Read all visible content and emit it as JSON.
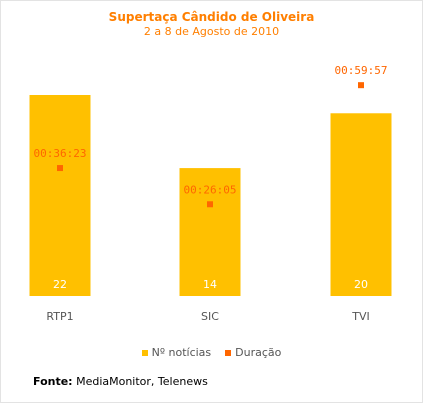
{
  "chart_data": {
    "type": "bar",
    "title": "Supertaça Cândido de Oliveira",
    "subtitle": "2 a 8 de Agosto de 2010",
    "categories": [
      "RTP1",
      "SIC",
      "TVI"
    ],
    "series": [
      {
        "name": "Nº notícias",
        "type": "bar",
        "values": [
          22,
          14,
          20
        ],
        "color": "#ffc000"
      },
      {
        "name": "Duração",
        "type": "point",
        "values": [
          "00:36:23",
          "00:26:05",
          "00:59:57"
        ],
        "seconds": [
          2183,
          1565,
          3597
        ],
        "color": "#ff6600"
      }
    ],
    "legend": "bottom-center",
    "grid": false
  },
  "source": {
    "label": "Fonte:",
    "text": " MediaMonitor, Telenews"
  }
}
